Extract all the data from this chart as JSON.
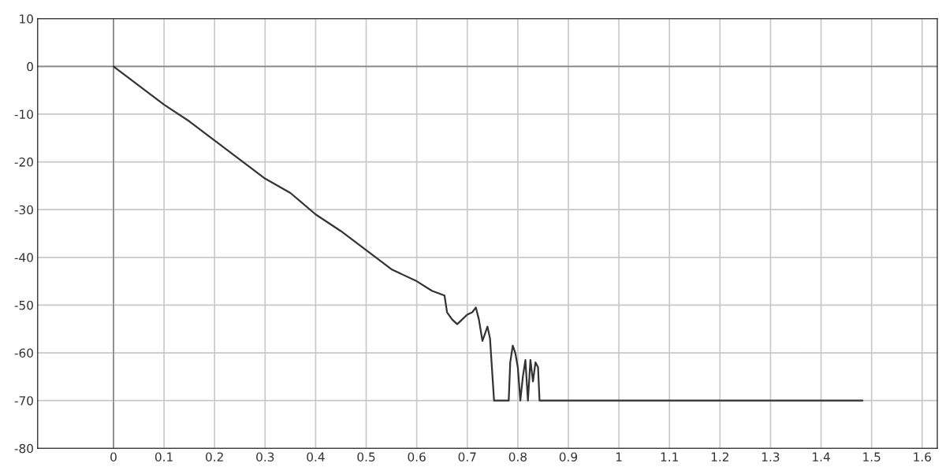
{
  "chart_data": {
    "type": "line",
    "x": [
      0,
      0.05,
      0.1,
      0.15,
      0.2,
      0.25,
      0.3,
      0.35,
      0.4,
      0.45,
      0.5,
      0.55,
      0.6,
      0.63,
      0.655,
      0.66,
      0.67,
      0.68,
      0.69,
      0.7,
      0.71,
      0.717,
      0.723,
      0.73,
      0.735,
      0.74,
      0.745,
      0.753,
      0.782,
      0.785,
      0.79,
      0.795,
      0.8,
      0.805,
      0.81,
      0.815,
      0.82,
      0.825,
      0.83,
      0.835,
      0.84,
      0.843,
      1.482
    ],
    "series": [
      {
        "color": "#333333",
        "values": [
          0,
          -4,
          -8,
          -11.5,
          -15.5,
          -19.5,
          -23.5,
          -26.5,
          -31,
          -34.5,
          -38.5,
          -42.5,
          -45,
          -47,
          -48,
          -51.5,
          -53,
          -54,
          -53,
          -52,
          -51.5,
          -50.5,
          -53,
          -57.5,
          -56,
          -54.5,
          -57,
          -70,
          -70,
          -62,
          -58.5,
          -60,
          -63,
          -70,
          -65,
          -61.5,
          -70,
          -61.5,
          -66,
          -62,
          -63,
          -70,
          -70
        ]
      }
    ],
    "xlim": [
      -0.15,
      1.63
    ],
    "ylim": [
      -80,
      10
    ],
    "xticks": [
      0,
      0.1,
      0.2,
      0.3,
      0.4,
      0.5,
      0.6,
      0.7,
      0.8,
      0.9,
      1,
      1.1,
      1.2,
      1.3,
      1.4,
      1.5,
      1.6
    ],
    "yticks": [
      -80,
      -70,
      -60,
      -50,
      -40,
      -30,
      -20,
      -10,
      0,
      10
    ],
    "grid": true,
    "line_style": "solid",
    "marker": "none"
  }
}
